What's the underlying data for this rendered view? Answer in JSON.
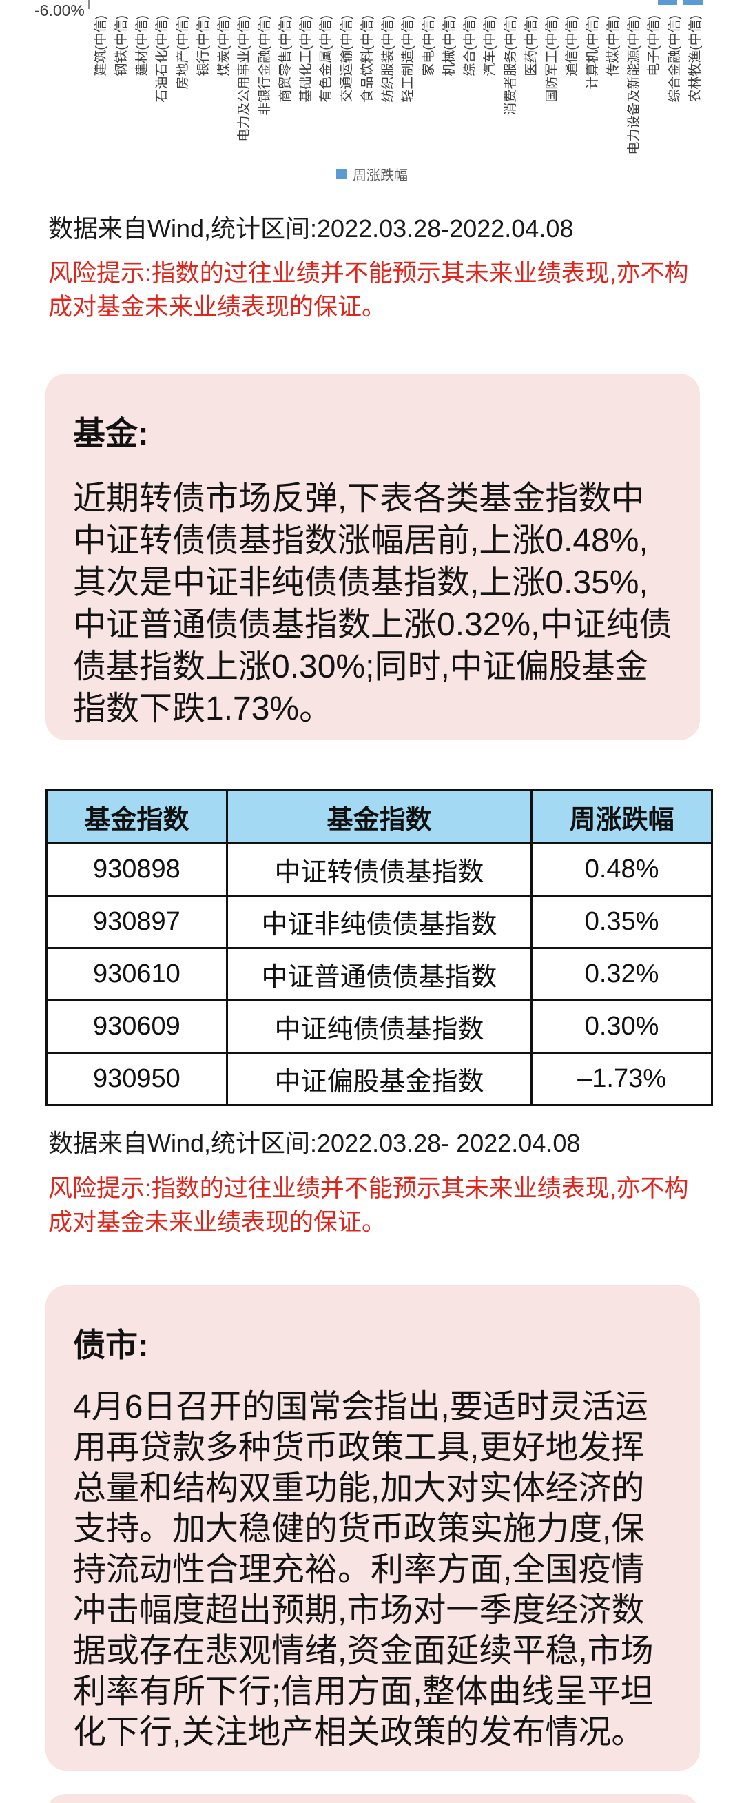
{
  "chart_data": {
    "type": "bar",
    "title": "",
    "legend": [
      "周涨跌幅"
    ],
    "legend_color": "#5B9BD5",
    "y_axis_tick": "-6.00%",
    "series_values_visible": false,
    "categories": [
      "建筑(中信)",
      "钢铁(中信)",
      "建材(中信)",
      "石油石化(中信)",
      "房地产(中信)",
      "银行(中信)",
      "煤炭(中信)",
      "电力及公用事业(中信)",
      "非银行金融(中信)",
      "商贸零售(中信)",
      "基础化工(中信)",
      "有色金属(中信)",
      "交通运输(中信)",
      "食品饮料(中信)",
      "纺织服装(中信)",
      "轻工制造(中信)",
      "家电(中信)",
      "机械(中信)",
      "综合(中信)",
      "汽车(中信)",
      "消费者服务(中信)",
      "医药(中信)",
      "国防军工(中信)",
      "通信(中信)",
      "计算机(中信)",
      "传媒(中信)",
      "电力设备及新能源(中信)",
      "电子(中信)",
      "综合金融(中信)",
      "农林牧渔(中信)"
    ]
  },
  "section1": {
    "source": "数据来自Wind,统计区间:2022.03.28-2022.04.08",
    "risk": "风险提示:指数的过往业绩并不能预示其未来业绩表现,亦不构成对基金未来业绩表现的保证。"
  },
  "fund_box": {
    "title": "基金:",
    "body": "近期转债市场反弹,下表各类基金指数中中证转债债基指数涨幅居前,上涨0.48%,其次是中证非纯债债基指数,上涨0.35%,中证普通债债基指数上涨0.32%,中证纯债债基指数上涨0.30%;同时,中证偏股基金指数下跌1.73%。"
  },
  "table": {
    "headers": [
      "基金指数",
      "基金指数",
      "周涨跌幅"
    ],
    "rows": [
      [
        "930898",
        "中证转债债基指数",
        "0.48%"
      ],
      [
        "930897",
        "中证非纯债债基指数",
        "0.35%"
      ],
      [
        "930610",
        "中证普通债债基指数",
        "0.32%"
      ],
      [
        "930609",
        "中证纯债债基指数",
        "0.30%"
      ],
      [
        "930950",
        "中证偏股基金指数",
        "–1.73%"
      ]
    ]
  },
  "section2": {
    "source": "数据来自Wind,统计区间:2022.03.28- 2022.04.08",
    "risk": "风险提示:指数的过往业绩并不能预示其未来业绩表现,亦不构成对基金未来业绩表现的保证。"
  },
  "bond_box": {
    "title": "债市:",
    "body": "4月6日召开的国常会指出,要适时灵活运用再贷款多种货币政策工具,更好地发挥总量和结构双重功能,加大对实体经济的支持。加大稳健的货币政策实施力度,保持流动性合理充裕。利率方面,全国疫情冲击幅度超出预期,市场对一季度经济数据或存在悲观情绪,资金面延续平稳,市场利率有所下行;信用方面,整体曲线呈平坦化下行,关注地产相关政策的发布情况。"
  },
  "colors": {
    "bar_blue": "#5B9BD5",
    "table_header_blue": "#A3D9F2",
    "risk_red": "#e1251b",
    "box_pink": "#F8E4E2",
    "text_black": "#111111"
  }
}
